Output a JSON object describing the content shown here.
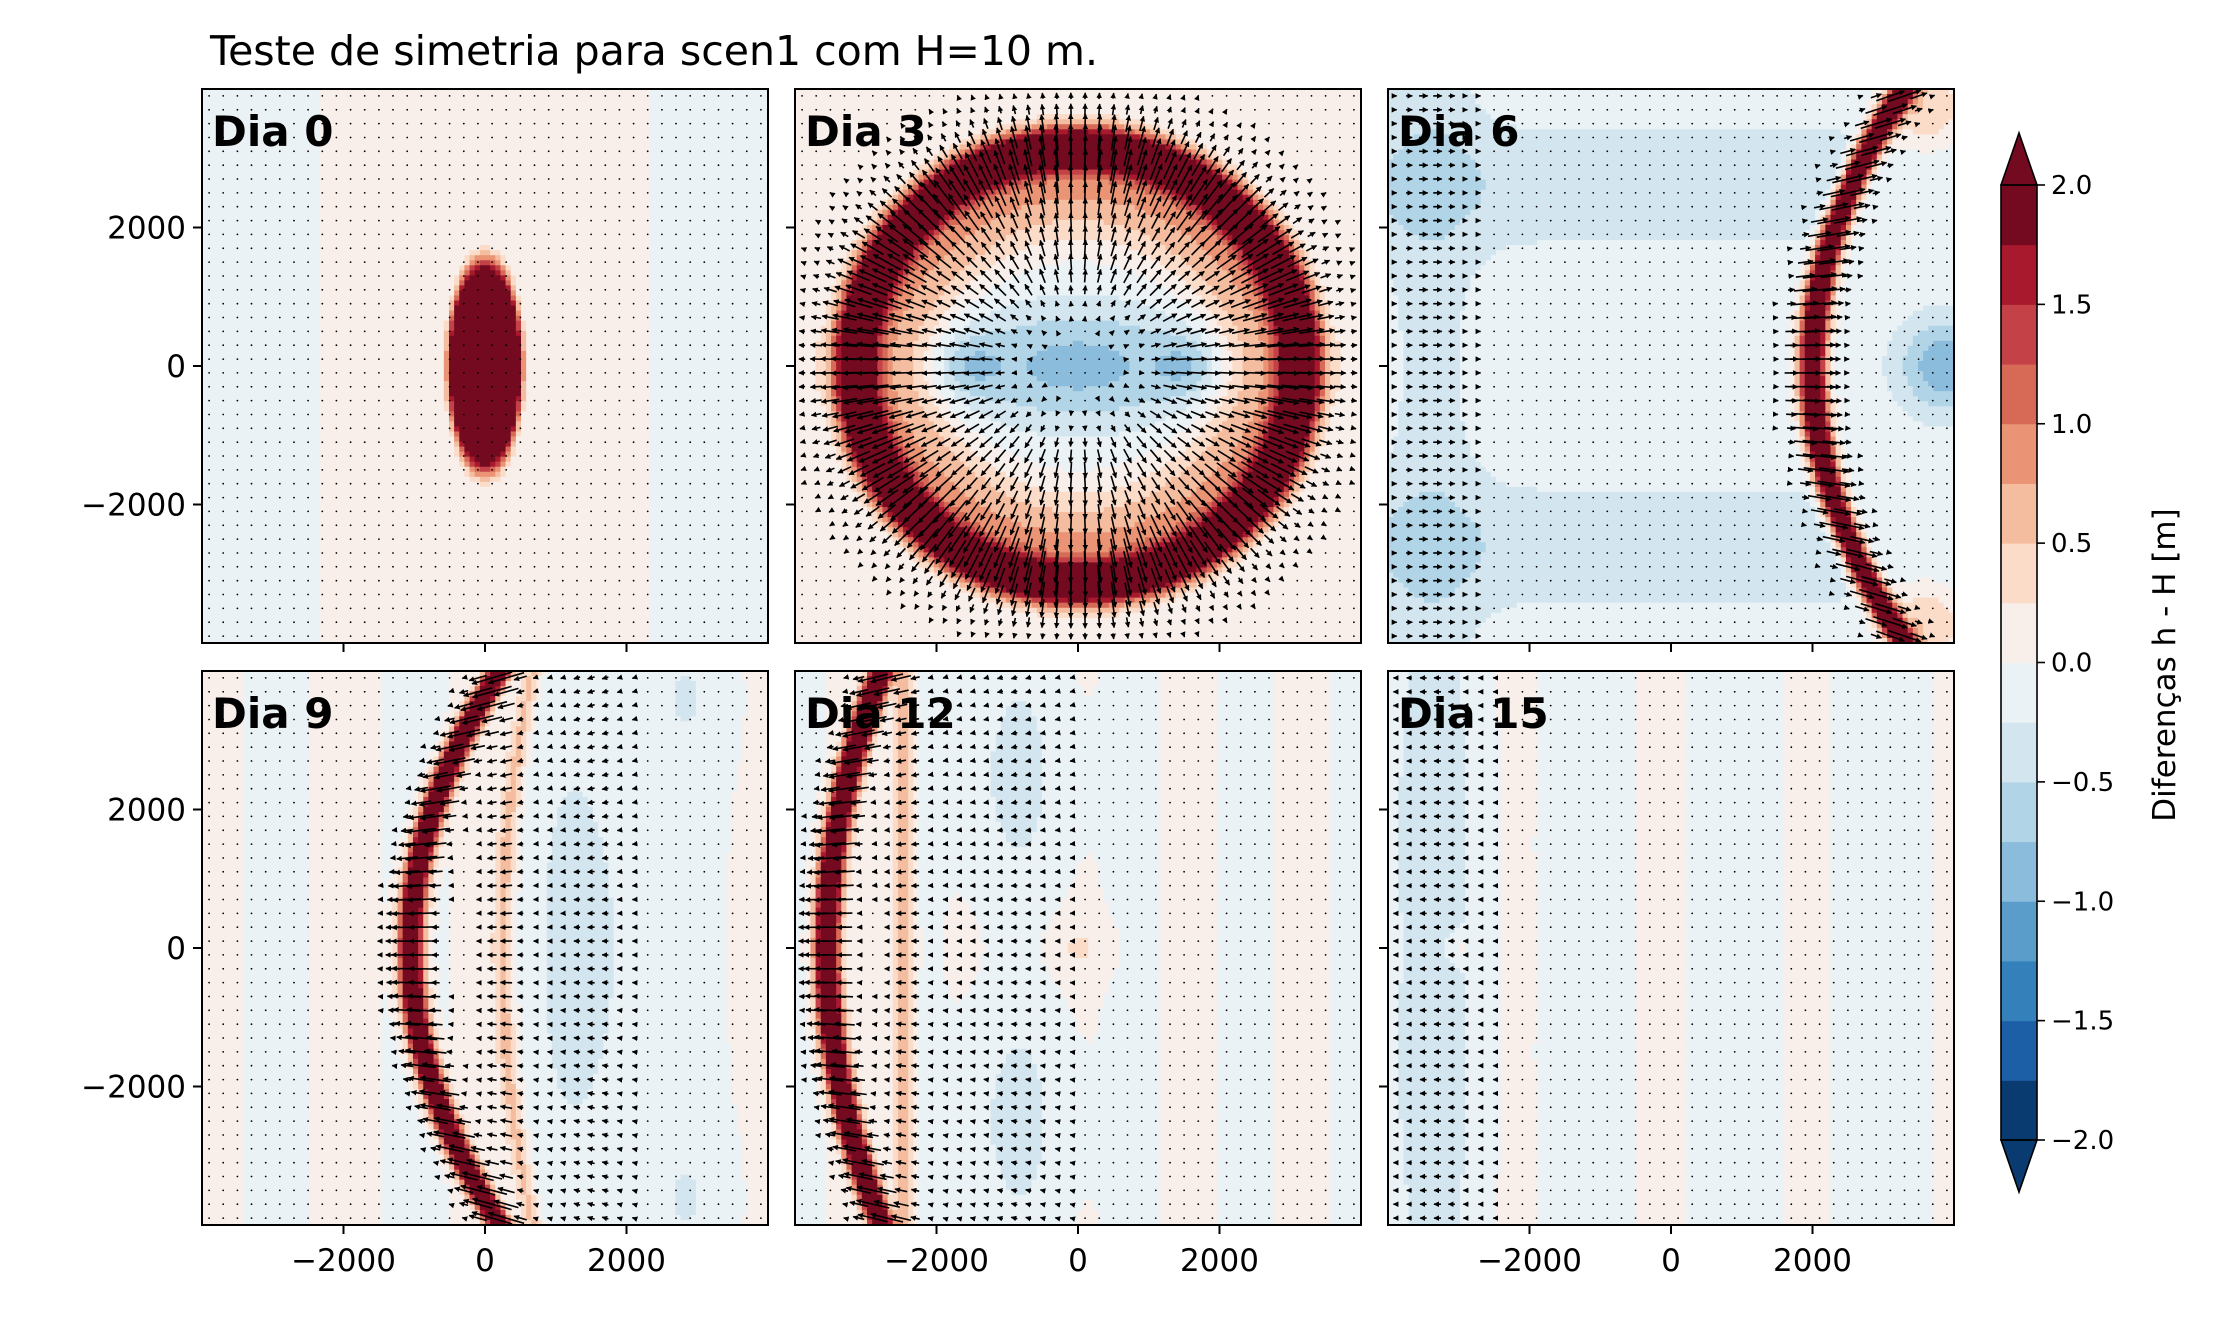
{
  "chart_data": {
    "type": "heatmap",
    "title": "Teste de simetria para scen1 com H=10 m.",
    "xlim": [
      -4000,
      4000
    ],
    "ylim": [
      -4000,
      4000
    ],
    "x_ticks": [
      -2000,
      0,
      2000
    ],
    "y_ticks": [
      -2000,
      0,
      2000
    ],
    "x_tick_labels": [
      "−2000",
      "0",
      "2000"
    ],
    "y_tick_labels": [
      "2000",
      "0",
      "−2000"
    ],
    "panels": [
      {
        "label": "Dia 0",
        "day": 0
      },
      {
        "label": "Dia 3",
        "day": 3
      },
      {
        "label": "Dia 6",
        "day": 6
      },
      {
        "label": "Dia 9",
        "day": 9
      },
      {
        "label": "Dia 12",
        "day": 12
      },
      {
        "label": "Dia 15",
        "day": 15
      }
    ],
    "colorbar": {
      "label": "Diferenças h - H [m]",
      "vmin": -2.0,
      "vmax": 2.0,
      "levels": [
        -2.0,
        -1.75,
        -1.5,
        -1.25,
        -1.0,
        -0.75,
        -0.5,
        -0.25,
        0.0,
        0.25,
        0.5,
        0.75,
        1.0,
        1.25,
        1.5,
        1.75,
        2.0
      ],
      "ticks": [
        -2.0,
        -1.5,
        -1.0,
        -0.5,
        0.0,
        0.5,
        1.0,
        1.5,
        2.0
      ],
      "tick_labels": [
        "−2.0",
        "−1.5",
        "−1.0",
        "−0.5",
        "0.0",
        "0.5",
        "1.0",
        "1.5",
        "2.0"
      ],
      "colors": [
        "#0a3b70",
        "#1d5fa6",
        "#3480bb",
        "#5a9dcb",
        "#8bbcdc",
        "#b1d4e7",
        "#d3e6f0",
        "#eaf2f6",
        "#f8eeea",
        "#fbdcc9",
        "#f5bd9f",
        "#ea9475",
        "#d66a57",
        "#c34147",
        "#a8192d",
        "#740a20"
      ],
      "extend": "both"
    }
  }
}
